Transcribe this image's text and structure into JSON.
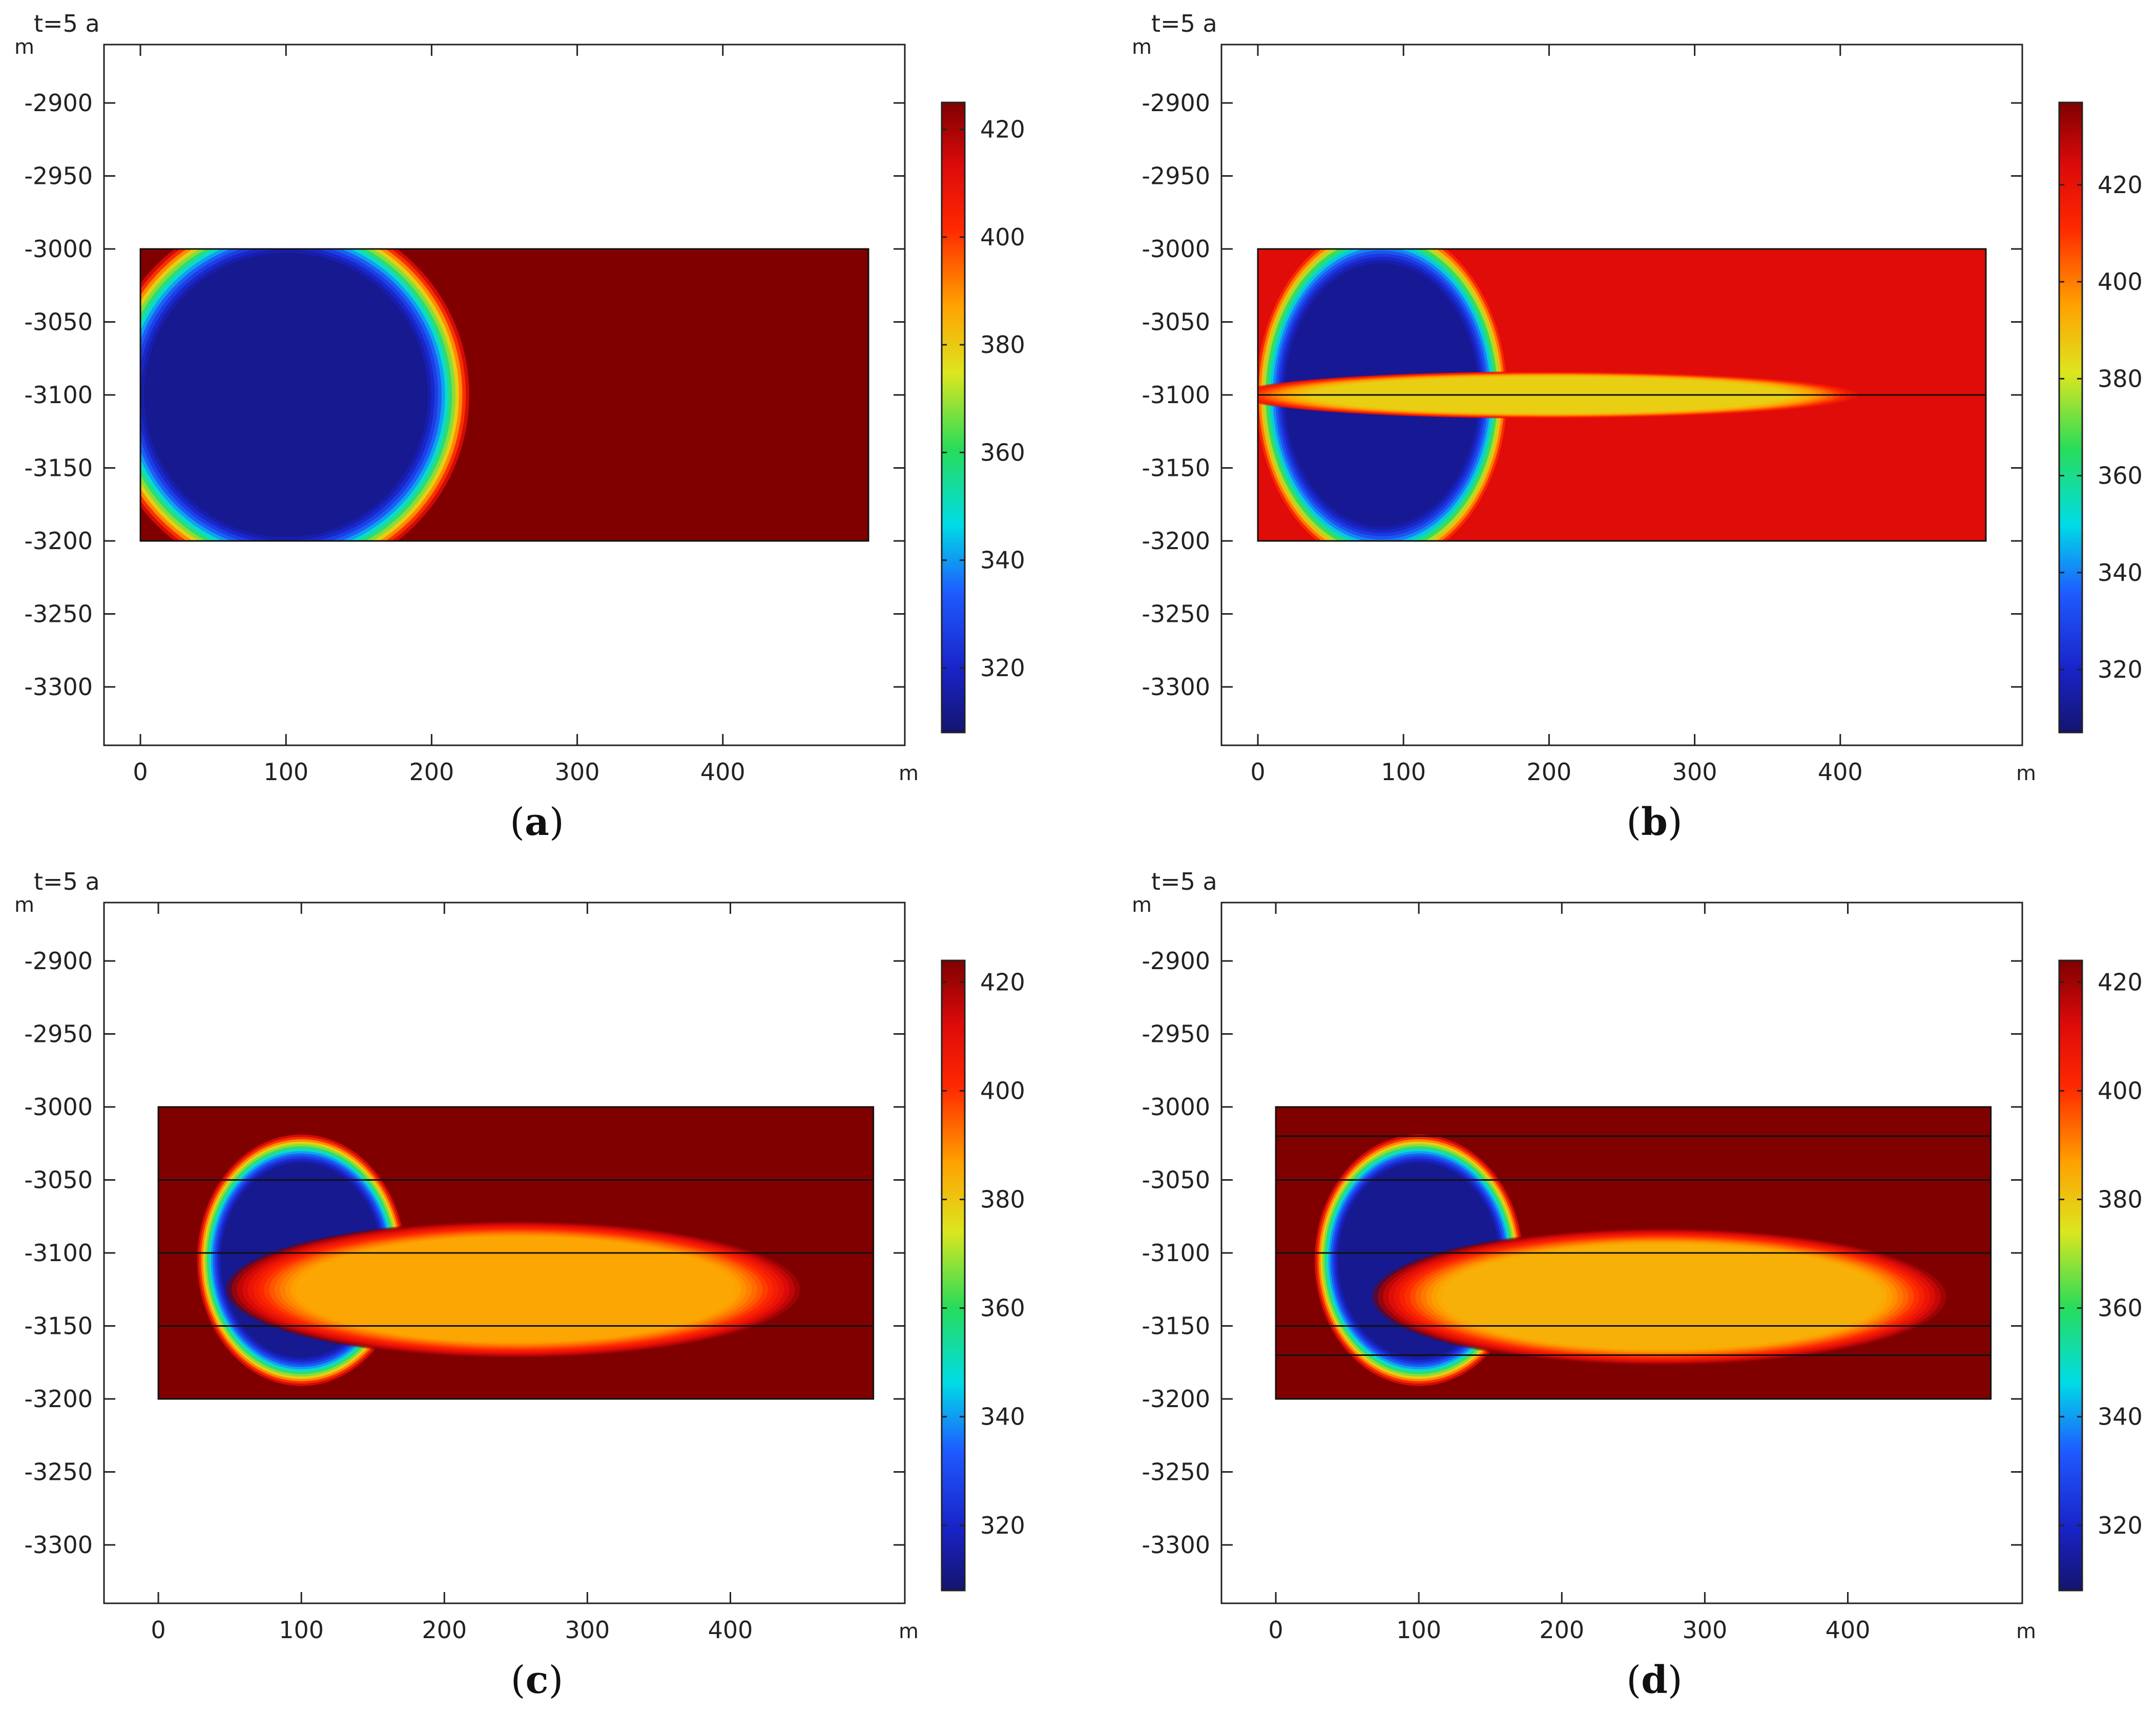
{
  "chart_data": [
    {
      "panel": "a",
      "type": "heatmap",
      "caption": "(a)",
      "time_label": "t=5 a",
      "x_unit": "m",
      "y_unit": "m",
      "x_ticks": [
        0,
        100,
        200,
        300,
        400
      ],
      "y_ticks": [
        -2900,
        -2950,
        -3000,
        -3050,
        -3100,
        -3150,
        -3200,
        -3250,
        -3300
      ],
      "xlim": [
        -25,
        525
      ],
      "ylim": [
        -3340,
        -2860
      ],
      "domain": {
        "x": [
          0,
          500
        ],
        "y": [
          -3200,
          -3000
        ]
      },
      "colorbar": {
        "min": 308,
        "max": 425,
        "ticks": [
          320,
          340,
          360,
          380,
          400,
          420
        ],
        "colormap": "rainbow"
      },
      "background_value": 425,
      "horizontal_lines_y": [],
      "cold_zone": [
        {
          "x": 100,
          "y": -3100,
          "rx": 95,
          "ry": 95,
          "value": 310
        }
      ]
    },
    {
      "panel": "b",
      "type": "heatmap",
      "caption": "(b)",
      "time_label": "t=5 a",
      "x_unit": "m",
      "y_unit": "m",
      "x_ticks": [
        0,
        100,
        200,
        300,
        400
      ],
      "y_ticks": [
        -2900,
        -2950,
        -3000,
        -3050,
        -3100,
        -3150,
        -3200,
        -3250,
        -3300
      ],
      "xlim": [
        -25,
        525
      ],
      "ylim": [
        -3340,
        -2860
      ],
      "domain": {
        "x": [
          0,
          500
        ],
        "y": [
          -3200,
          -3000
        ]
      },
      "colorbar": {
        "min": 307,
        "max": 437,
        "ticks": [
          320,
          340,
          360,
          380,
          400,
          420
        ],
        "colormap": "rainbow"
      },
      "background_value": 423,
      "horizontal_lines_y": [
        -3100
      ],
      "cold_zone": [
        {
          "x": 85,
          "y": -3100,
          "rx": 65,
          "ry": 88,
          "value": 310
        },
        {
          "x": 200,
          "y": -3100,
          "rx": 160,
          "ry": 12,
          "value": 385
        }
      ]
    },
    {
      "panel": "c",
      "type": "heatmap",
      "caption": "(c)",
      "time_label": "t=5 a",
      "x_unit": "m",
      "y_unit": "m",
      "x_ticks": [
        0,
        100,
        200,
        300,
        400
      ],
      "y_ticks": [
        -2900,
        -2950,
        -3000,
        -3050,
        -3100,
        -3150,
        -3200,
        -3250,
        -3300
      ],
      "xlim": [
        -38,
        522
      ],
      "ylim": [
        -3340,
        -2860
      ],
      "domain": {
        "x": [
          0,
          500
        ],
        "y": [
          -3200,
          -3000
        ]
      },
      "colorbar": {
        "min": 308,
        "max": 424,
        "ticks": [
          320,
          340,
          360,
          380,
          400,
          420
        ],
        "colormap": "rainbow"
      },
      "background_value": 424,
      "horizontal_lines_y": [
        -3050,
        -3100,
        -3150
      ],
      "cold_zone": [
        {
          "x": 100,
          "y": -3105,
          "rx": 55,
          "ry": 65,
          "value": 310
        },
        {
          "x": 250,
          "y": -3125,
          "rx": 150,
          "ry": 35,
          "value": 385
        }
      ]
    },
    {
      "panel": "d",
      "type": "heatmap",
      "caption": "(d)",
      "time_label": "t=5 a",
      "x_unit": "m",
      "y_unit": "m",
      "x_ticks": [
        0,
        100,
        200,
        300,
        400
      ],
      "y_ticks": [
        -2900,
        -2950,
        -3000,
        -3050,
        -3100,
        -3150,
        -3200,
        -3250,
        -3300
      ],
      "xlim": [
        -38,
        522
      ],
      "ylim": [
        -3340,
        -2860
      ],
      "domain": {
        "x": [
          0,
          500
        ],
        "y": [
          -3200,
          -3000
        ]
      },
      "colorbar": {
        "min": 308,
        "max": 424,
        "ticks": [
          320,
          340,
          360,
          380,
          400,
          420
        ],
        "colormap": "rainbow"
      },
      "background_value": 424,
      "horizontal_lines_y": [
        -3020,
        -3050,
        -3100,
        -3150,
        -3170
      ],
      "cold_zone": [
        {
          "x": 100,
          "y": -3105,
          "rx": 55,
          "ry": 65,
          "value": 310
        },
        {
          "x": 270,
          "y": -3130,
          "rx": 150,
          "ry": 35,
          "value": 383
        }
      ]
    }
  ]
}
